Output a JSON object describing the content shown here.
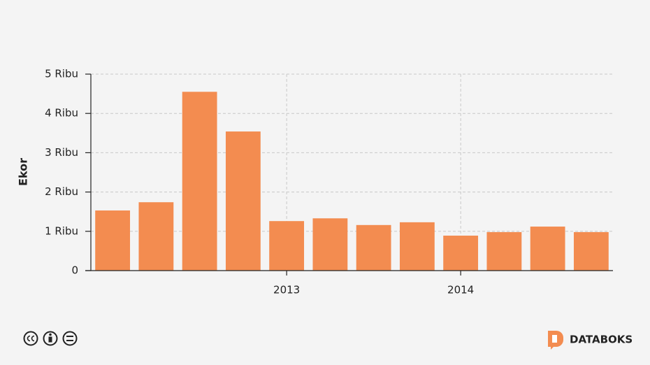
{
  "chart_data": {
    "type": "bar",
    "y_label": "Ekor",
    "categories": [
      null,
      null,
      null,
      null,
      "2013",
      null,
      null,
      null,
      "2014",
      null,
      null,
      null
    ],
    "values": [
      1530,
      1740,
      4550,
      3540,
      1260,
      1330,
      1160,
      1230,
      890,
      980,
      1120,
      980
    ],
    "color": "#f38c50",
    "ylim": [
      0,
      5000
    ],
    "yticks": [
      0,
      {
        "value": 1000,
        "label": "1 Ribu"
      },
      {
        "value": 2000,
        "label": "2 Ribu"
      },
      {
        "value": 3000,
        "label": "3 Ribu"
      },
      {
        "value": 4000,
        "label": "4 Ribu"
      },
      {
        "value": 5000,
        "label": "5 Ribu"
      }
    ],
    "grid": true
  },
  "footer": {
    "brand": "DATABOKS"
  }
}
